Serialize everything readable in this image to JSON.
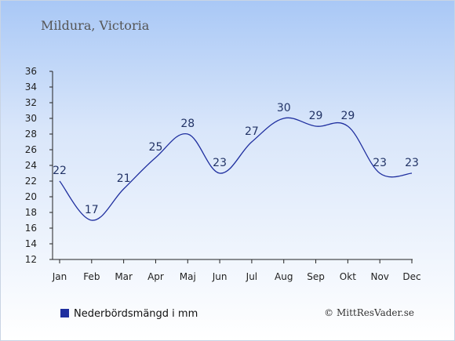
{
  "chart_data": {
    "type": "line",
    "title": "Mildura, Victoria",
    "categories": [
      "Jan",
      "Feb",
      "Mar",
      "Apr",
      "Maj",
      "Jun",
      "Jul",
      "Aug",
      "Sep",
      "Okt",
      "Nov",
      "Dec"
    ],
    "series": [
      {
        "name": "Nederbördsmängd i mm",
        "values": [
          22,
          17,
          21,
          25,
          28,
          23,
          27,
          30,
          29,
          29,
          23,
          23
        ],
        "color": "#1f2f9f"
      }
    ],
    "ylim": [
      12,
      36
    ],
    "yticks": [
      "12",
      "14",
      "16",
      "18",
      "20",
      "22",
      "24",
      "26",
      "28",
      "30",
      "32",
      "34",
      "36"
    ],
    "grid": false,
    "legend": "bottom-left"
  },
  "credit": "© MittResVader.se"
}
